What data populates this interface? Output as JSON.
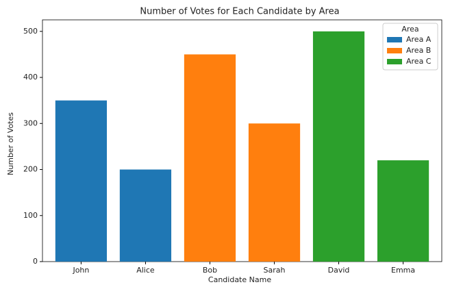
{
  "chart_data": {
    "type": "bar",
    "title": "Number of Votes for Each Candidate by Area",
    "x_label": "Candidate Name",
    "y_label": "Number of Votes",
    "categories": [
      "John",
      "Alice",
      "Bob",
      "Sarah",
      "David",
      "Emma"
    ],
    "series": [
      {
        "name": "Area A",
        "color": "#1f77b4",
        "values": [
          350,
          200,
          null,
          null,
          null,
          null
        ]
      },
      {
        "name": "Area B",
        "color": "#ff7f0e",
        "values": [
          null,
          null,
          450,
          300,
          null,
          null
        ]
      },
      {
        "name": "Area C",
        "color": "#2ca02c",
        "values": [
          null,
          null,
          null,
          null,
          500,
          220
        ]
      }
    ],
    "legend_title": "Area",
    "legend_position": "upper right",
    "ylim": [
      0,
      525
    ],
    "yticks": [
      0,
      100,
      200,
      300,
      400,
      500
    ],
    "grid": false
  }
}
